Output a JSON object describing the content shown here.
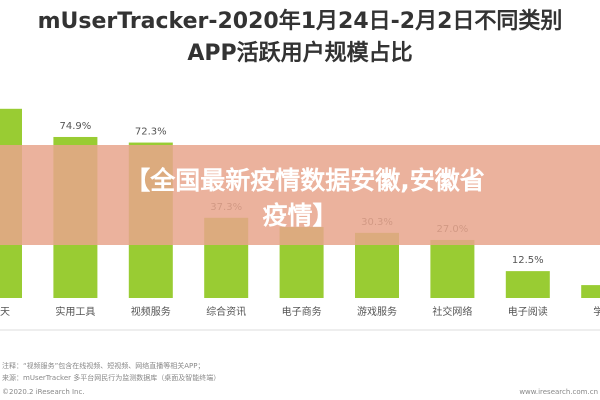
{
  "chart_data": {
    "type": "bar",
    "title": "mUserTracker-2020年1月24日-2月2日不同类别",
    "subtitle": "APP活跃用户规模占比",
    "categories": [
      "聊天",
      "实用工具",
      "视频服务",
      "综合资讯",
      "电子商务",
      "游戏服务",
      "社交网络",
      "电子阅读",
      "学习"
    ],
    "values": [
      88,
      74.9,
      72.3,
      37.3,
      33,
      30.3,
      27.0,
      12.5,
      6
    ],
    "value_labels": [
      null,
      "74.9%",
      "72.3%",
      "37.3%",
      null,
      "30.3%",
      "27.0%",
      "12.5%",
      null
    ],
    "color": "#99cc33",
    "ylim": [
      0,
      100
    ],
    "notes": [
      "注释：“视频服务”包含在线视频、短视频、网络直播等相关APP；",
      "来源：mUserTracker 多平台网民行为监测数据库（桌面及智能终端）",
      "©2020.2 iResearch Inc.",
      "www.iresearch.com.cn"
    ]
  },
  "banner": {
    "lines": [
      "【全国最新疫情数据安徽,安徽省",
      "疫情】"
    ]
  }
}
